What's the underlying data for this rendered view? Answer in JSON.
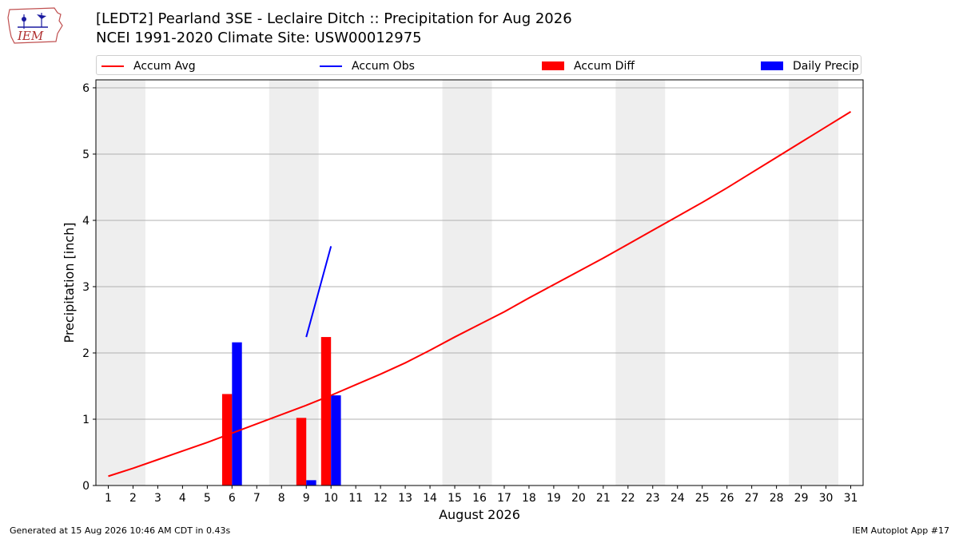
{
  "header": {
    "logo_text": "IEM",
    "title_line1": "[LEDT2] Pearland 3SE - Leclaire Ditch :: Precipitation for Aug 2026",
    "title_line2": "NCEI 1991-2020 Climate Site: USW00012975"
  },
  "legend": {
    "accum_avg": "Accum Avg",
    "accum_obs": "Accum Obs",
    "accum_diff": "Accum Diff",
    "daily_precip": "Daily Precip"
  },
  "colors": {
    "accum_avg": "#ff0000",
    "accum_obs": "#0000ff",
    "accum_diff": "#ff0000",
    "daily_precip": "#0000ff",
    "weekend_shade": "#eeeeee",
    "grid": "#b0b0b0"
  },
  "footer": {
    "generated": "Generated at 15 Aug 2026 10:46 AM CDT in 0.43s",
    "app": "IEM Autoplot App #17"
  },
  "chart_data": {
    "type": "bar",
    "xlabel": "August 2026",
    "ylabel": "Precipitation [inch]",
    "xlim": [
      0.5,
      31.5
    ],
    "ylim": [
      0,
      6.12
    ],
    "yticks": [
      0,
      1,
      2,
      3,
      4,
      5,
      6
    ],
    "xticks": [
      1,
      2,
      3,
      4,
      5,
      6,
      7,
      8,
      9,
      10,
      11,
      12,
      13,
      14,
      15,
      16,
      17,
      18,
      19,
      20,
      21,
      22,
      23,
      24,
      25,
      26,
      27,
      28,
      29,
      30,
      31
    ],
    "grid": "horizontal",
    "legend_position": "top",
    "weekend_shading": [
      [
        1,
        2
      ],
      [
        8,
        9
      ],
      [
        15,
        16
      ],
      [
        22,
        23
      ],
      [
        29,
        30
      ]
    ],
    "series": [
      {
        "name": "Accum Avg",
        "kind": "line",
        "x": [
          1,
          2,
          3,
          4,
          5,
          6,
          7,
          8,
          9,
          10,
          11,
          12,
          13,
          14,
          15,
          16,
          17,
          18,
          19,
          20,
          21,
          22,
          23,
          24,
          25,
          26,
          27,
          28,
          29,
          30,
          31
        ],
        "values": [
          0.14,
          0.26,
          0.39,
          0.52,
          0.65,
          0.79,
          0.93,
          1.07,
          1.21,
          1.36,
          1.52,
          1.68,
          1.85,
          2.04,
          2.24,
          2.43,
          2.62,
          2.83,
          3.03,
          3.23,
          3.43,
          3.64,
          3.85,
          4.06,
          4.27,
          4.49,
          4.72,
          4.95,
          5.18,
          5.41,
          5.64
        ]
      },
      {
        "name": "Accum Obs",
        "kind": "line",
        "x": [
          9,
          10
        ],
        "values": [
          2.24,
          3.61
        ]
      },
      {
        "name": "Accum Diff",
        "kind": "bar",
        "x": [
          6,
          9,
          10
        ],
        "values": [
          1.38,
          1.02,
          2.24
        ]
      },
      {
        "name": "Daily Precip",
        "kind": "bar",
        "x": [
          6,
          9,
          10
        ],
        "values": [
          2.16,
          0.08,
          1.36
        ]
      }
    ]
  }
}
